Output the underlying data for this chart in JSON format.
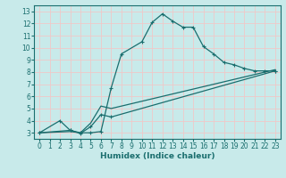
{
  "xlabel": "Humidex (Indice chaleur)",
  "bg_color": "#c8eaea",
  "grid_color": "#f0c8c8",
  "line_color": "#1a6e6e",
  "xlim": [
    -0.5,
    23.5
  ],
  "ylim": [
    2.5,
    13.5
  ],
  "xticks": [
    0,
    1,
    2,
    3,
    4,
    5,
    6,
    7,
    8,
    9,
    10,
    11,
    12,
    13,
    14,
    15,
    16,
    17,
    18,
    19,
    20,
    21,
    22,
    23
  ],
  "yticks": [
    3,
    4,
    5,
    6,
    7,
    8,
    9,
    10,
    11,
    12,
    13
  ],
  "lines": [
    {
      "x": [
        0,
        2,
        3,
        4,
        5,
        6,
        7,
        8,
        10,
        11,
        12,
        13,
        14,
        15,
        16,
        17,
        18,
        19,
        20,
        21,
        22,
        23
      ],
      "y": [
        3,
        4,
        3.2,
        3.0,
        3.0,
        3.1,
        6.7,
        9.5,
        10.5,
        12.1,
        12.8,
        12.2,
        11.7,
        11.7,
        10.1,
        9.5,
        8.8,
        8.6,
        8.3,
        8.1,
        8.1,
        8.1
      ],
      "has_markers": true
    },
    {
      "x": [
        0,
        3,
        4,
        5,
        6,
        7,
        23
      ],
      "y": [
        3,
        3.2,
        2.95,
        3.5,
        4.5,
        4.3,
        8.1
      ],
      "has_markers": true
    },
    {
      "x": [
        0,
        3,
        4,
        5,
        6,
        7,
        23
      ],
      "y": [
        3,
        3.1,
        3.0,
        3.8,
        5.2,
        5.0,
        8.2
      ],
      "has_markers": false
    }
  ]
}
